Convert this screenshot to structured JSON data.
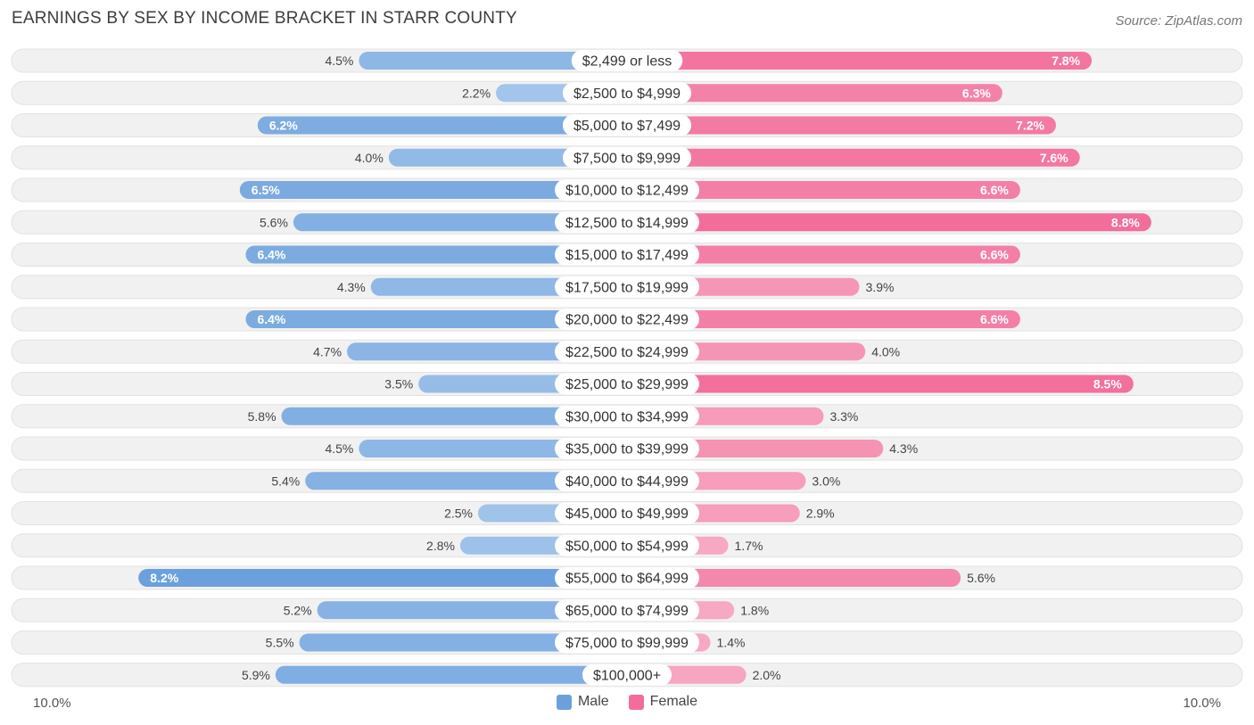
{
  "title": "EARNINGS BY SEX BY INCOME BRACKET IN STARR COUNTY",
  "source": "Source: ZipAtlas.com",
  "colors": {
    "male": "#6ba0dc",
    "male_light": "#a8c8ec",
    "female": "#f26d99",
    "female_light": "#f7a8c2",
    "row_bg": "#f1f1f1"
  },
  "legend": {
    "male": "Male",
    "female": "Female"
  },
  "axis": {
    "left_label": "10.0%",
    "right_label": "10.0%"
  },
  "chart_data": {
    "type": "bar",
    "orientation": "horizontal-diverging",
    "title": "EARNINGS BY SEX BY INCOME BRACKET IN STARR COUNTY",
    "xlim": [
      -10,
      10
    ],
    "categories": [
      "$2,499 or less",
      "$2,500 to $4,999",
      "$5,000 to $7,499",
      "$7,500 to $9,999",
      "$10,000 to $12,499",
      "$12,500 to $14,999",
      "$15,000 to $17,499",
      "$17,500 to $19,999",
      "$20,000 to $22,499",
      "$22,500 to $24,999",
      "$25,000 to $29,999",
      "$30,000 to $34,999",
      "$35,000 to $39,999",
      "$40,000 to $44,999",
      "$45,000 to $49,999",
      "$50,000 to $54,999",
      "$55,000 to $64,999",
      "$65,000 to $74,999",
      "$75,000 to $99,999",
      "$100,000+"
    ],
    "series": [
      {
        "name": "Male",
        "values": [
          4.5,
          2.2,
          6.2,
          4.0,
          6.5,
          5.6,
          6.4,
          4.3,
          6.4,
          4.7,
          3.5,
          5.8,
          4.5,
          5.4,
          2.5,
          2.8,
          8.2,
          5.2,
          5.5,
          5.9
        ],
        "labels": [
          "4.5%",
          "2.2%",
          "6.2%",
          "4.0%",
          "6.5%",
          "5.6%",
          "6.4%",
          "4.3%",
          "6.4%",
          "4.7%",
          "3.5%",
          "5.8%",
          "4.5%",
          "5.4%",
          "2.5%",
          "2.8%",
          "8.2%",
          "5.2%",
          "5.5%",
          "5.9%"
        ]
      },
      {
        "name": "Female",
        "values": [
          7.8,
          6.3,
          7.2,
          7.6,
          6.6,
          8.8,
          6.6,
          3.9,
          6.6,
          4.0,
          8.5,
          3.3,
          4.3,
          3.0,
          2.9,
          1.7,
          5.6,
          1.8,
          1.4,
          2.0
        ],
        "labels": [
          "7.8%",
          "6.3%",
          "7.2%",
          "7.6%",
          "6.6%",
          "8.8%",
          "6.6%",
          "3.9%",
          "6.6%",
          "4.0%",
          "8.5%",
          "3.3%",
          "4.3%",
          "3.0%",
          "2.9%",
          "1.7%",
          "5.6%",
          "1.8%",
          "1.4%",
          "2.0%"
        ]
      }
    ]
  }
}
